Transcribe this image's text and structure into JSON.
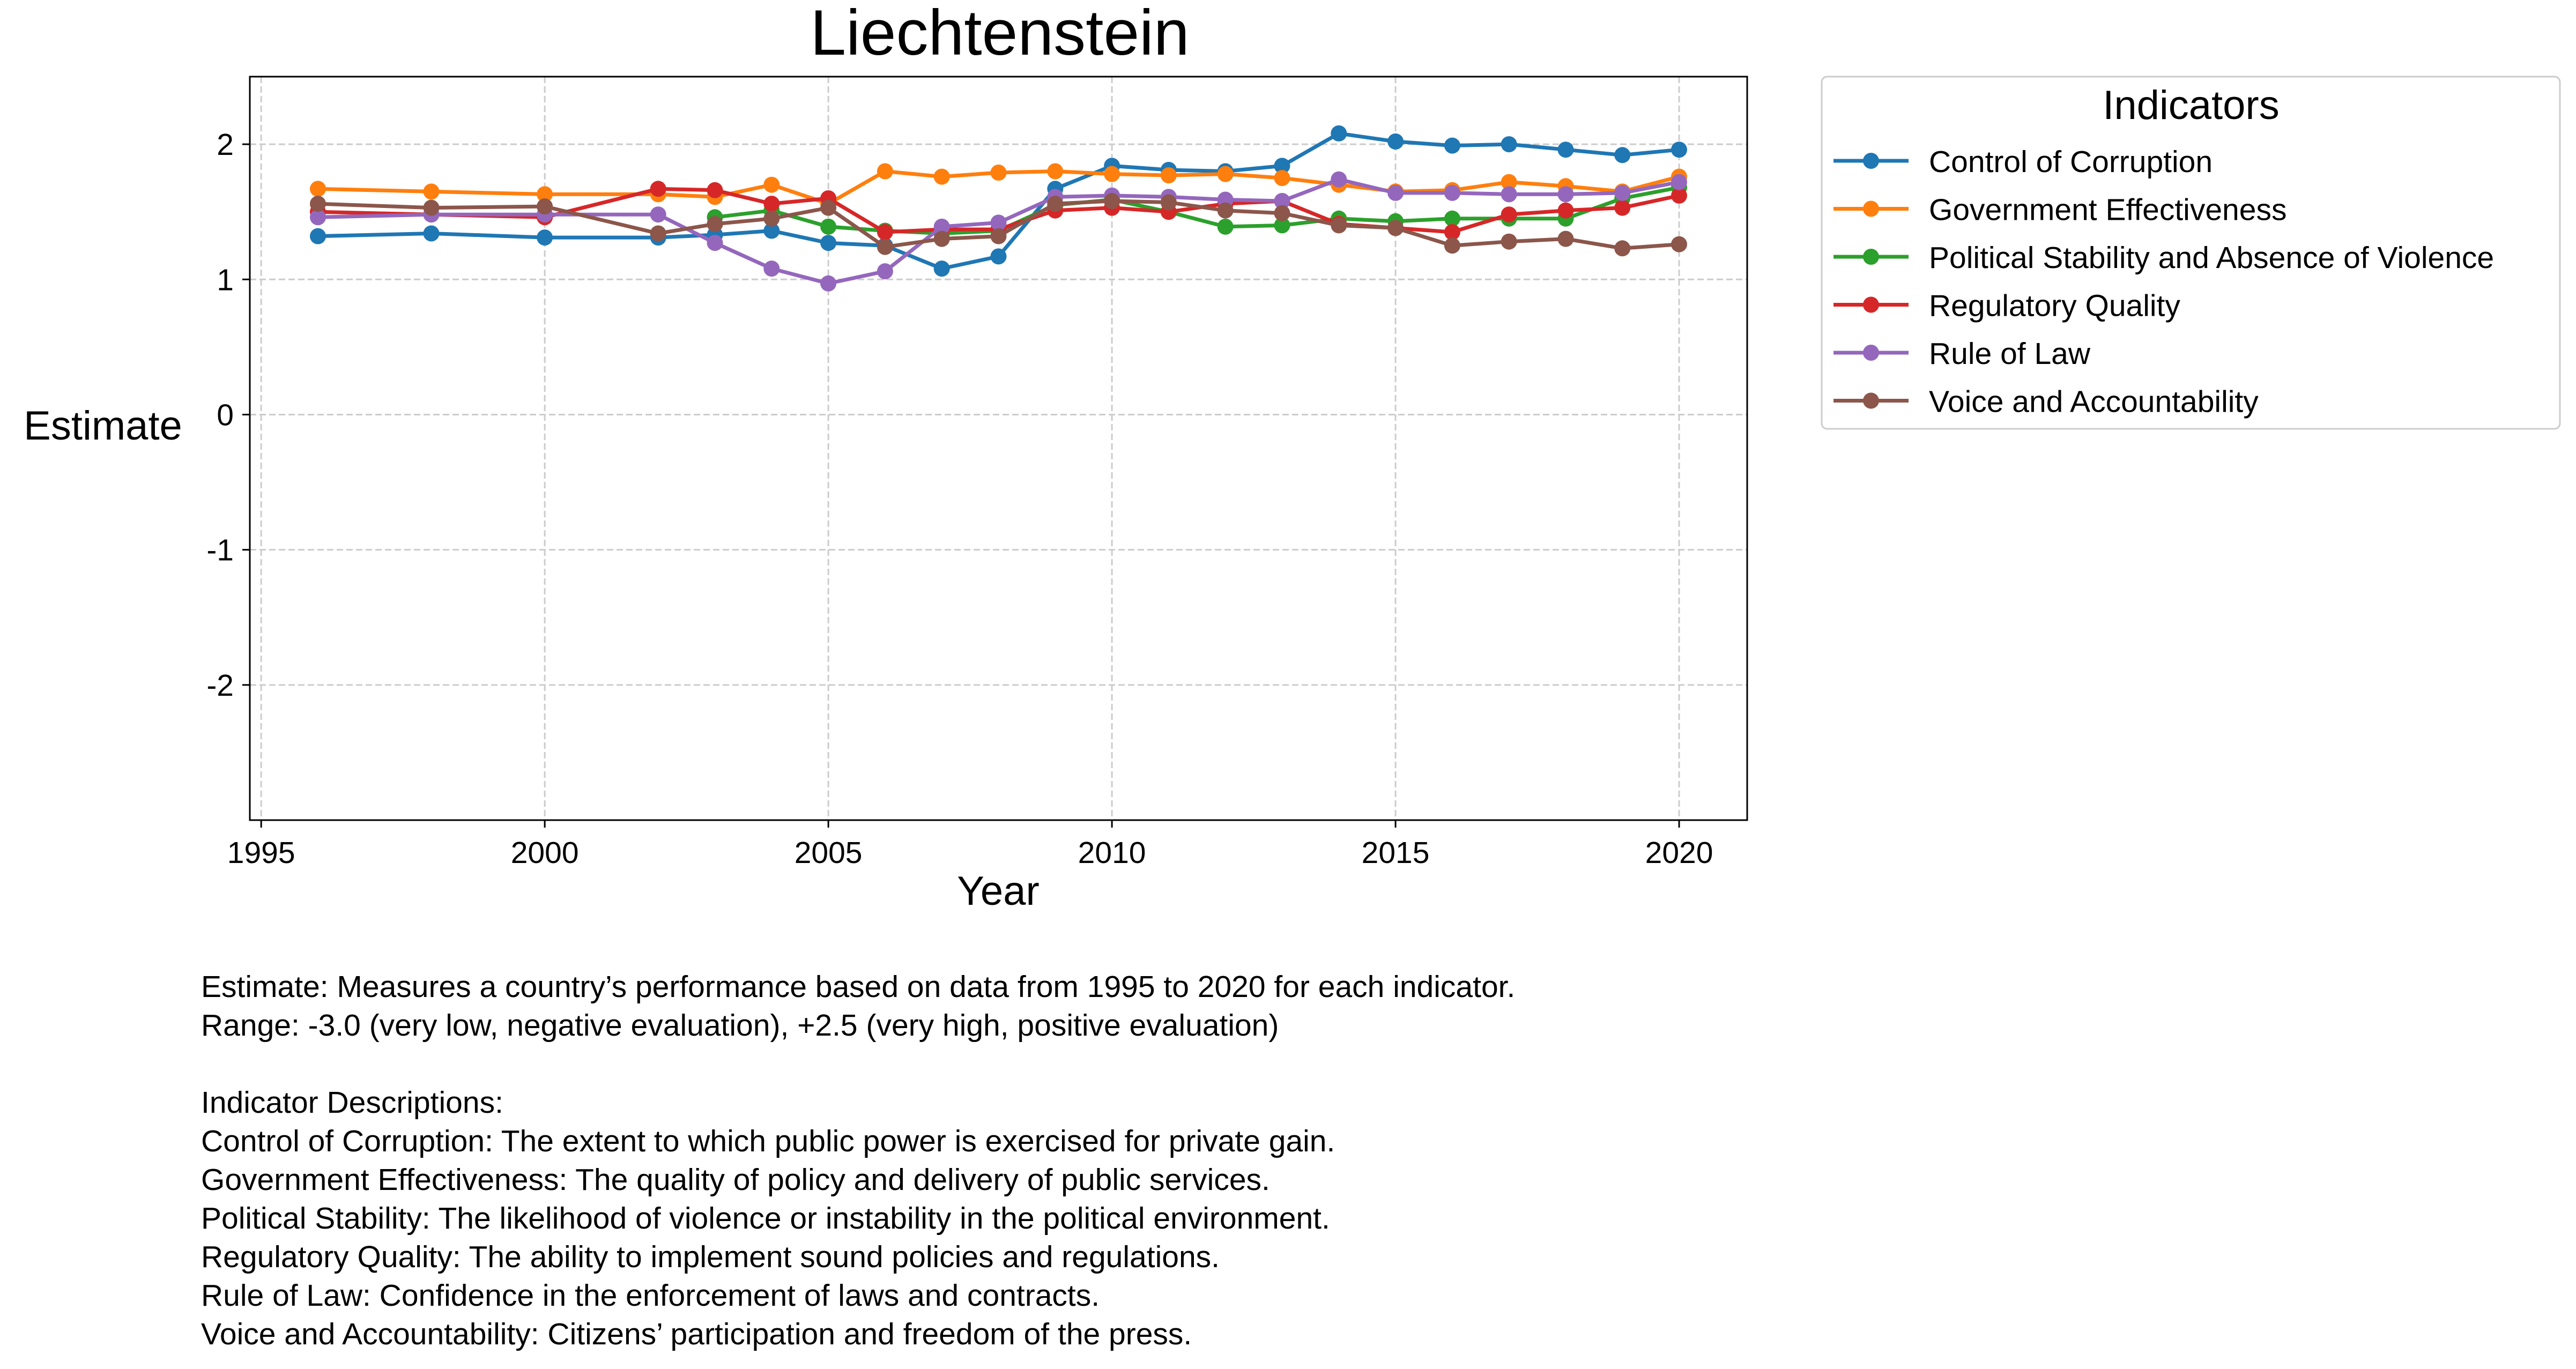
{
  "chart_data": {
    "type": "line",
    "title": "Liechtenstein",
    "xlabel": "Year",
    "ylabel": "Estimate",
    "xlim": [
      1994.8,
      2021.2
    ],
    "ylim": [
      -3.0,
      2.5
    ],
    "x_ticks": [
      1995,
      2000,
      2005,
      2010,
      2015,
      2020
    ],
    "y_ticks": [
      -2,
      -1,
      0,
      1,
      2
    ],
    "grid": true,
    "legend": {
      "title": "Indicators",
      "placement": "outside-top-right"
    },
    "x": [
      1996,
      1998,
      2000,
      2002,
      2003,
      2004,
      2005,
      2006,
      2007,
      2008,
      2009,
      2010,
      2011,
      2012,
      2013,
      2014,
      2015,
      2016,
      2017,
      2018,
      2019,
      2020
    ],
    "series": [
      {
        "name": "Control of Corruption",
        "color": "#1f77b4",
        "values": [
          1.32,
          1.34,
          1.31,
          1.31,
          1.33,
          1.36,
          1.27,
          1.25,
          1.08,
          1.17,
          1.67,
          1.84,
          1.81,
          1.8,
          1.84,
          2.08,
          2.02,
          1.99,
          2.0,
          1.96,
          1.92,
          1.96
        ]
      },
      {
        "name": "Government Effectiveness",
        "color": "#ff7f0e",
        "values": [
          1.67,
          1.65,
          1.63,
          1.63,
          1.61,
          1.7,
          1.56,
          1.8,
          1.76,
          1.79,
          1.8,
          1.78,
          1.77,
          1.78,
          1.75,
          1.7,
          1.65,
          1.66,
          1.72,
          1.69,
          1.65,
          1.76
        ]
      },
      {
        "name": "Political Stability and Absence of Violence",
        "color": "#2ca02c",
        "values": [
          null,
          null,
          null,
          null,
          1.46,
          1.51,
          1.39,
          1.36,
          1.34,
          1.36,
          1.55,
          1.59,
          1.5,
          1.39,
          1.4,
          1.45,
          1.43,
          1.45,
          1.45,
          1.45,
          1.6,
          1.68
        ]
      },
      {
        "name": "Regulatory Quality",
        "color": "#d62728",
        "values": [
          1.5,
          1.48,
          1.46,
          1.67,
          1.66,
          1.56,
          1.6,
          1.35,
          1.37,
          1.37,
          1.51,
          1.53,
          1.5,
          1.56,
          1.58,
          1.41,
          1.38,
          1.35,
          1.48,
          1.51,
          1.53,
          1.62
        ]
      },
      {
        "name": "Rule of Law",
        "color": "#9467bd",
        "values": [
          1.46,
          1.48,
          1.48,
          1.48,
          1.27,
          1.08,
          0.97,
          1.06,
          1.39,
          1.42,
          1.61,
          1.62,
          1.61,
          1.59,
          1.58,
          1.74,
          1.64,
          1.64,
          1.63,
          1.63,
          1.64,
          1.72
        ]
      },
      {
        "name": "Voice and Accountability",
        "color": "#8c564b",
        "values": [
          1.56,
          1.53,
          1.54,
          1.34,
          1.41,
          1.45,
          1.53,
          1.24,
          1.3,
          1.32,
          1.56,
          1.58,
          1.57,
          1.51,
          1.49,
          1.4,
          1.38,
          1.25,
          1.28,
          1.3,
          1.23,
          1.26
        ]
      }
    ]
  },
  "notes": {
    "estimate": "Estimate: Measures a country’s performance based on data from 1995 to 2020 for each indicator.",
    "range": "Range: -3.0 (very low, negative evaluation), +2.5 (very high, positive evaluation)",
    "heading": "Indicator Descriptions:",
    "descriptions": [
      "Control of Corruption: The extent to which public power is exercised for private gain.",
      "Government Effectiveness: The quality of policy and delivery of public services.",
      "Political Stability: The likelihood of violence or instability in the political environment.",
      "Regulatory Quality: The ability to implement sound policies and regulations.",
      "Rule of Law: Confidence in the enforcement of laws and contracts.",
      "Voice and Accountability: Citizens’ participation and freedom of the press."
    ]
  }
}
